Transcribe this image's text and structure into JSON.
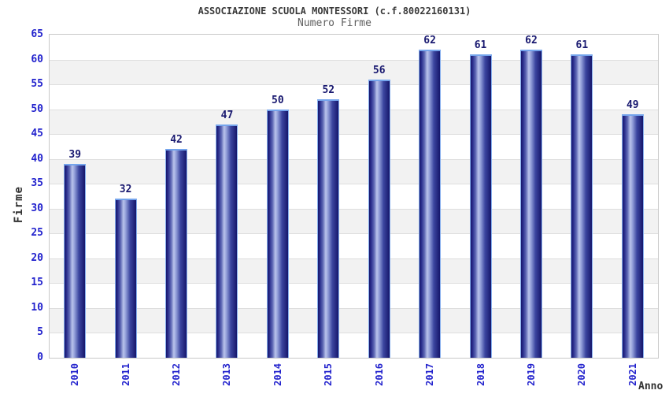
{
  "chart_data": {
    "type": "bar",
    "title": "ASSOCIAZIONE SCUOLA MONTESSORI (c.f.80022160131)",
    "subtitle": "Numero Firme",
    "xlabel": "Anno",
    "ylabel": "Firme",
    "categories": [
      "2010",
      "2011",
      "2012",
      "2013",
      "2014",
      "2015",
      "2016",
      "2017",
      "2018",
      "2019",
      "2020",
      "2021"
    ],
    "values": [
      39,
      32,
      42,
      47,
      50,
      52,
      56,
      62,
      61,
      62,
      61,
      49
    ],
    "ylim": [
      0,
      65
    ],
    "yticks": [
      0,
      5,
      10,
      15,
      20,
      25,
      30,
      35,
      40,
      45,
      50,
      55,
      60,
      65
    ],
    "grid": "horizontal-bands-alternating",
    "legend": "none",
    "bar_value_labels": true
  },
  "colors": {
    "tick_label": "#2323cd",
    "value_label": "#191970",
    "title": "#3a3a3a",
    "subtitle": "#606060",
    "axis_title": "#333333",
    "plot_border": "#c9c9c9",
    "gridline": "#dedede",
    "band_light": "#ffffff",
    "band_dark": "#f2f2f2",
    "bar_cap": "#74a4ec",
    "bar_side": "#85aeee",
    "bar_gradient": [
      [
        "#16166b",
        0
      ],
      [
        "#2a2f8e",
        10
      ],
      [
        "#5e68b4",
        24
      ],
      [
        "#bac4ec",
        38
      ],
      [
        "#8e9ad6",
        50
      ],
      [
        "#3c46a0",
        70
      ],
      [
        "#16166b",
        100
      ]
    ]
  }
}
